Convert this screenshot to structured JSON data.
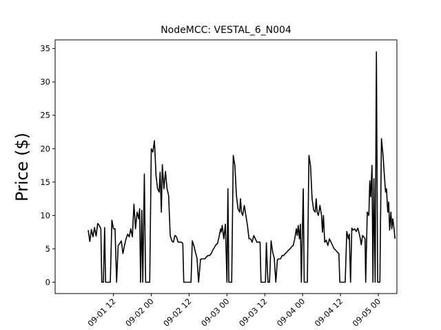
{
  "chart_data": {
    "type": "line",
    "title": "NodeMCC: VESTAL_6_N004",
    "xlabel": "",
    "ylabel": "Price ($)",
    "xlim_hours": [
      -6.5,
      88.0
    ],
    "ylim": [
      -1.7,
      36.3
    ],
    "grid": false,
    "legend": "none",
    "x_ticks": [
      {
        "hours": 12,
        "label": "09-01 12"
      },
      {
        "hours": 24,
        "label": "09-02 00"
      },
      {
        "hours": 36,
        "label": "09-02 12"
      },
      {
        "hours": 48,
        "label": "09-03 00"
      },
      {
        "hours": 60,
        "label": "09-03 12"
      },
      {
        "hours": 72,
        "label": "09-04 00"
      },
      {
        "hours": 84,
        "label": "09-04 12"
      },
      {
        "hours": 96,
        "label": "09-05 00"
      }
    ],
    "y_ticks": [
      0,
      5,
      10,
      15,
      20,
      25,
      30,
      35
    ],
    "series": [
      {
        "name": "",
        "color": "#000000",
        "points": [
          [
            4.0,
            7.8
          ],
          [
            4.5,
            6.1
          ],
          [
            5.0,
            7.9
          ],
          [
            5.5,
            6.8
          ],
          [
            6.0,
            8.2
          ],
          [
            6.5,
            6.9
          ],
          [
            7.0,
            8.8
          ],
          [
            7.5,
            8.5
          ],
          [
            8.0,
            8.0
          ],
          [
            8.3,
            0.0
          ],
          [
            8.8,
            0.0
          ],
          [
            9.2,
            8.2
          ],
          [
            9.5,
            0.0
          ],
          [
            10.0,
            0.0
          ],
          [
            11.0,
            0.0
          ],
          [
            11.5,
            9.3
          ],
          [
            12.0,
            8.0
          ],
          [
            12.5,
            8.0
          ],
          [
            13.0,
            0.0
          ],
          [
            13.5,
            5.5
          ],
          [
            14.0,
            5.8
          ],
          [
            14.5,
            6.2
          ],
          [
            15.0,
            4.3
          ],
          [
            15.5,
            5.5
          ],
          [
            16.0,
            6.5
          ],
          [
            16.5,
            7.2
          ],
          [
            17.0,
            6.8
          ],
          [
            17.5,
            8.0
          ],
          [
            18.0,
            6.8
          ],
          [
            18.5,
            11.7
          ],
          [
            19.0,
            8.0
          ],
          [
            19.5,
            10.5
          ],
          [
            20.0,
            9.5
          ],
          [
            20.3,
            11.0
          ],
          [
            20.6,
            0.0
          ],
          [
            21.0,
            10.8
          ],
          [
            21.3,
            0.0
          ],
          [
            21.8,
            16.2
          ],
          [
            22.2,
            0.0
          ],
          [
            23.5,
            0.0
          ],
          [
            24.0,
            20.0
          ],
          [
            24.5,
            19.5
          ],
          [
            25.0,
            21.2
          ],
          [
            25.5,
            16.0
          ],
          [
            26.0,
            14.0
          ],
          [
            26.5,
            13.5
          ],
          [
            26.8,
            16.5
          ],
          [
            27.2,
            10.5
          ],
          [
            27.5,
            17.6
          ],
          [
            28.0,
            14.0
          ],
          [
            28.5,
            16.6
          ],
          [
            29.0,
            14.0
          ],
          [
            29.5,
            13.0
          ],
          [
            30.0,
            7.0
          ],
          [
            30.5,
            6.2
          ],
          [
            31.0,
            6.0
          ],
          [
            31.5,
            7.0
          ],
          [
            32.0,
            6.8
          ],
          [
            32.5,
            6.0
          ],
          [
            33.0,
            6.0
          ],
          [
            33.5,
            6.0
          ],
          [
            34.0,
            5.8
          ],
          [
            34.3,
            0.0
          ],
          [
            35.0,
            0.0
          ],
          [
            36.0,
            0.0
          ],
          [
            36.6,
            0.0
          ],
          [
            37.0,
            6.2
          ],
          [
            37.5,
            5.5
          ],
          [
            38.0,
            4.5
          ],
          [
            38.5,
            3.6
          ],
          [
            39.0,
            0.0
          ],
          [
            39.6,
            3.4
          ],
          [
            40.0,
            3.5
          ],
          [
            41.0,
            3.5
          ],
          [
            41.5,
            3.8
          ],
          [
            42.0,
            4.0
          ],
          [
            42.5,
            4.0
          ],
          [
            43.0,
            4.3
          ],
          [
            43.5,
            4.8
          ],
          [
            44.0,
            5.2
          ],
          [
            44.5,
            5.6
          ],
          [
            45.0,
            5.8
          ],
          [
            45.5,
            6.8
          ],
          [
            46.0,
            8.0
          ],
          [
            46.2,
            7.5
          ],
          [
            46.5,
            8.5
          ],
          [
            47.0,
            6.5
          ],
          [
            47.5,
            8.7
          ],
          [
            48.0,
            0.0
          ],
          [
            48.3,
            14.0
          ],
          [
            48.6,
            0.0
          ],
          [
            49.5,
            0.0
          ],
          [
            50.0,
            19.0
          ],
          [
            50.5,
            17.5
          ],
          [
            51.0,
            13.0
          ],
          [
            51.5,
            11.0
          ],
          [
            52.0,
            10.5
          ],
          [
            52.3,
            12.5
          ],
          [
            52.6,
            10.5
          ],
          [
            53.0,
            10.0
          ],
          [
            53.5,
            11.5
          ],
          [
            54.0,
            10.0
          ],
          [
            54.5,
            8.5
          ],
          [
            55.0,
            6.5
          ],
          [
            55.5,
            6.5
          ],
          [
            56.0,
            6.0
          ],
          [
            56.5,
            7.0
          ],
          [
            57.0,
            6.5
          ],
          [
            57.5,
            6.0
          ],
          [
            58.0,
            6.0
          ],
          [
            58.5,
            6.0
          ],
          [
            58.8,
            0.0
          ],
          [
            59.5,
            0.0
          ],
          [
            60.2,
            0.0
          ],
          [
            60.5,
            5.9
          ],
          [
            61.0,
            0.0
          ],
          [
            61.5,
            0.0
          ],
          [
            62.0,
            6.2
          ],
          [
            62.5,
            4.5
          ],
          [
            63.0,
            3.6
          ],
          [
            63.5,
            0.0
          ],
          [
            64.0,
            3.4
          ],
          [
            64.5,
            3.5
          ],
          [
            65.0,
            3.5
          ],
          [
            65.5,
            4.0
          ],
          [
            66.0,
            4.0
          ],
          [
            66.5,
            4.3
          ],
          [
            67.0,
            4.5
          ],
          [
            67.5,
            4.8
          ],
          [
            68.0,
            5.0
          ],
          [
            68.5,
            5.3
          ],
          [
            69.0,
            5.5
          ],
          [
            69.5,
            6.5
          ],
          [
            70.0,
            8.0
          ],
          [
            70.3,
            7.0
          ],
          [
            70.6,
            8.5
          ],
          [
            71.0,
            6.5
          ],
          [
            71.3,
            8.7
          ],
          [
            71.6,
            0.0
          ],
          [
            72.2,
            14.0
          ],
          [
            72.5,
            0.0
          ],
          [
            73.5,
            0.0
          ],
          [
            74.0,
            19.0
          ],
          [
            74.5,
            17.5
          ],
          [
            75.0,
            12.5
          ],
          [
            75.5,
            10.8
          ],
          [
            76.0,
            10.5
          ],
          [
            76.3,
            12.5
          ],
          [
            76.6,
            10.5
          ],
          [
            77.0,
            10.0
          ],
          [
            77.5,
            11.5
          ],
          [
            78.0,
            10.0
          ],
          [
            78.3,
            7.5
          ],
          [
            78.6,
            10.0
          ],
          [
            79.0,
            6.0
          ],
          [
            79.5,
            6.3
          ],
          [
            80.0,
            5.5
          ],
          [
            80.5,
            6.5
          ],
          [
            81.0,
            6.0
          ],
          [
            81.5,
            5.5
          ],
          [
            82.0,
            5.0
          ],
          [
            82.5,
            4.8
          ],
          [
            83.0,
            4.5
          ],
          [
            83.5,
            4.3
          ],
          [
            83.8,
            0.0
          ],
          [
            84.5,
            0.0
          ],
          [
            85.5,
            0.0
          ],
          [
            86.0,
            7.6
          ],
          [
            86.5,
            6.5
          ],
          [
            86.8,
            7.2
          ],
          [
            87.2,
            0.0
          ],
          [
            87.6,
            8.1
          ],
          [
            88.0,
            7.8
          ],
          [
            88.5,
            8.0
          ],
          [
            89.0,
            7.6
          ],
          [
            89.5,
            8.1
          ],
          [
            90.0,
            7.2
          ],
          [
            90.3,
            6.5
          ],
          [
            90.6,
            5.6
          ],
          [
            91.0,
            7.0
          ],
          [
            91.4,
            6.8
          ],
          [
            91.8,
            6.5
          ],
          [
            92.0,
            0.0
          ],
          [
            92.5,
            10.5
          ],
          [
            93.0,
            10.0
          ],
          [
            93.3,
            15.2
          ],
          [
            93.6,
            12.8
          ],
          [
            94.0,
            17.5
          ],
          [
            94.3,
            0.0
          ],
          [
            94.6,
            15.5
          ],
          [
            95.0,
            0.0
          ],
          [
            95.4,
            34.5
          ],
          [
            95.8,
            0.0
          ],
          [
            96.5,
            0.0
          ],
          [
            97.0,
            21.5
          ],
          [
            97.5,
            19.0
          ],
          [
            98.0,
            15.5
          ],
          [
            98.3,
            13.5
          ],
          [
            98.6,
            14.0
          ],
          [
            99.0,
            10.5
          ],
          [
            99.3,
            12.0
          ],
          [
            99.6,
            7.8
          ],
          [
            100.0,
            10.5
          ],
          [
            100.3,
            8.0
          ],
          [
            100.6,
            9.5
          ],
          [
            101.0,
            8.0
          ],
          [
            101.3,
            6.5
          ]
        ]
      }
    ]
  }
}
